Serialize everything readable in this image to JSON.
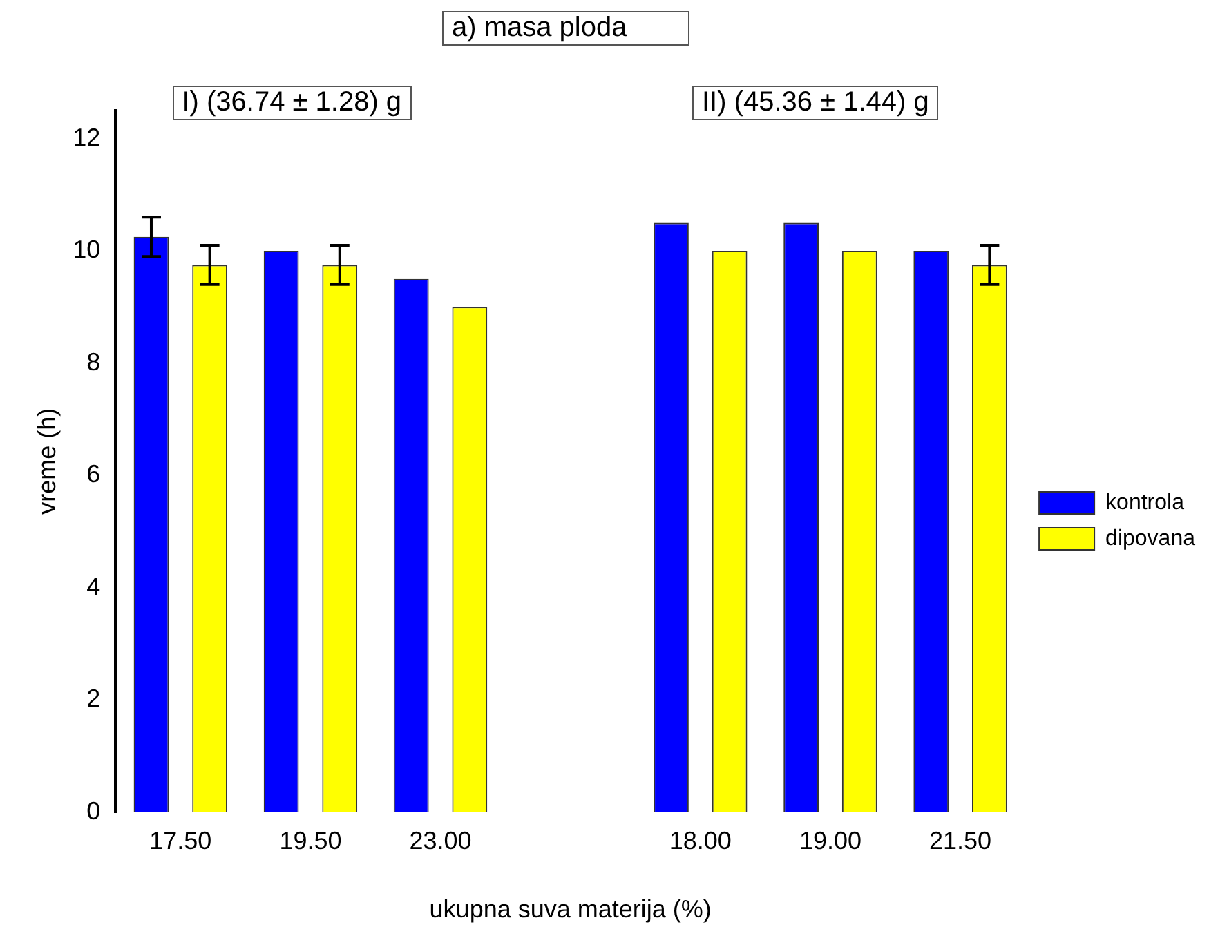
{
  "chart_data": {
    "type": "bar",
    "title": "a) masa ploda",
    "xlabel": "ukupna suva materija (%)",
    "ylabel": "vreme (h)",
    "annotations": [
      "I) (36.74 ± 1.28) g",
      "II) (45.36 ± 1.44) g"
    ],
    "categories": [
      "17.50",
      "19.50",
      "23.00",
      null,
      "18.00",
      "19.00",
      "21.50"
    ],
    "series": [
      {
        "name": "kontrola",
        "color": "#0000ff",
        "values": [
          10.25,
          10,
          9.5,
          null,
          10.5,
          10.5,
          10
        ],
        "errors": [
          0.35,
          null,
          null,
          null,
          null,
          null,
          null
        ]
      },
      {
        "name": "dipovana",
        "color": "#ffff00",
        "values": [
          9.75,
          9.75,
          9,
          null,
          10,
          10,
          9.75
        ],
        "errors": [
          0.35,
          0.35,
          null,
          null,
          null,
          null,
          0.35
        ]
      }
    ],
    "ylim": [
      0,
      12.5
    ],
    "yticks": [
      0,
      2,
      4,
      6,
      8,
      10,
      12
    ],
    "grid": false,
    "legend": "right"
  }
}
